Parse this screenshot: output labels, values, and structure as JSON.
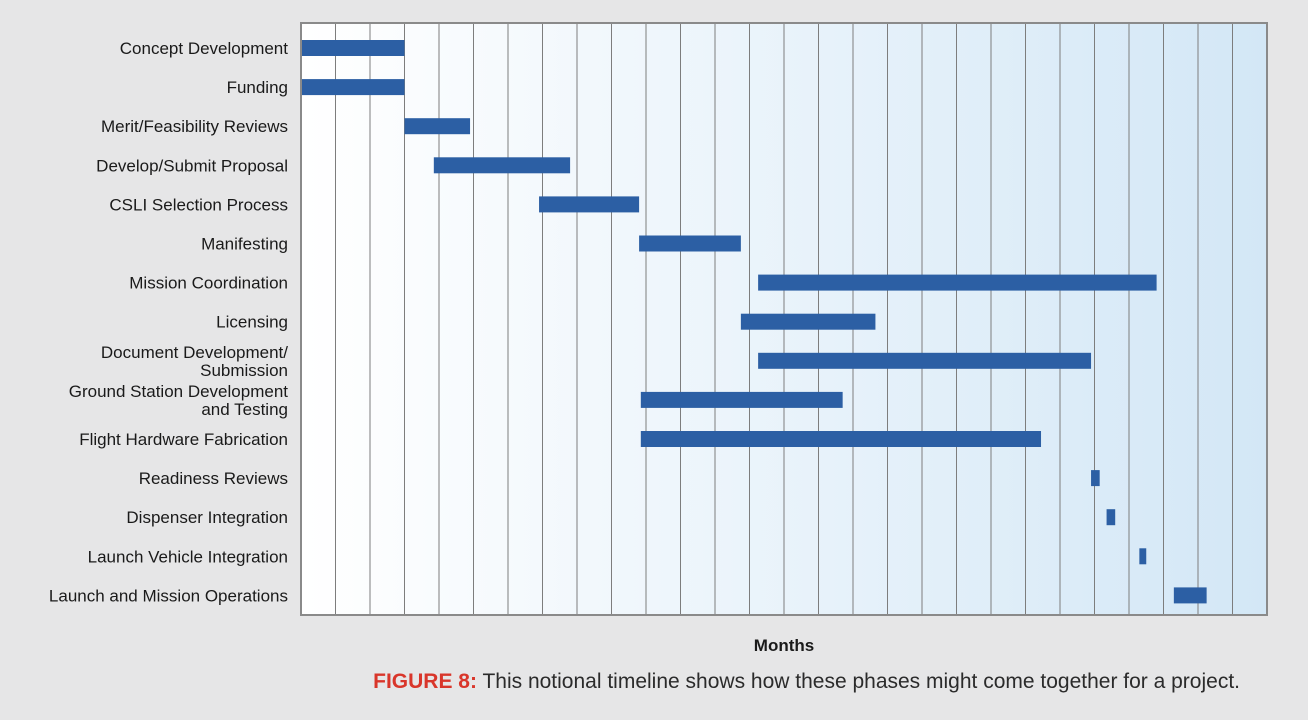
{
  "chart_data": {
    "type": "gantt",
    "xlabel": "Months",
    "months": 28,
    "grid": true,
    "tasks": [
      {
        "label": [
          "Concept Development"
        ],
        "start": 0,
        "end": 3.0
      },
      {
        "label": [
          "Funding"
        ],
        "start": 0,
        "end": 3.0
      },
      {
        "label": [
          "Merit/Feasibility Reviews"
        ],
        "start": 3.0,
        "end": 4.9
      },
      {
        "label": [
          "Develop/Submit Proposal"
        ],
        "start": 3.85,
        "end": 7.8
      },
      {
        "label": [
          "CSLI Selection Process"
        ],
        "start": 6.9,
        "end": 9.8
      },
      {
        "label": [
          "Manifesting"
        ],
        "start": 9.8,
        "end": 12.75
      },
      {
        "label": [
          "Mission Coordination"
        ],
        "start": 13.25,
        "end": 24.8
      },
      {
        "label": [
          "Licensing"
        ],
        "start": 12.75,
        "end": 16.65
      },
      {
        "label": [
          "Document Development/",
          "Submission"
        ],
        "start": 13.25,
        "end": 22.9
      },
      {
        "label": [
          "Ground Station Development",
          "and Testing"
        ],
        "start": 9.85,
        "end": 15.7
      },
      {
        "label": [
          "Flight Hardware Fabrication"
        ],
        "start": 9.85,
        "end": 21.45
      },
      {
        "label": [
          "Readiness Reviews"
        ],
        "start": 22.9,
        "end": 23.15
      },
      {
        "label": [
          "Dispenser Integration"
        ],
        "start": 23.35,
        "end": 23.6
      },
      {
        "label": [
          "Launch Vehicle Integration"
        ],
        "start": 24.3,
        "end": 24.5
      },
      {
        "label": [
          "Launch and Mission Operations"
        ],
        "start": 25.3,
        "end": 26.25
      }
    ],
    "colors": {
      "bar": "#2c5fa4",
      "grid": "#7d7d7d",
      "frame": "#8a8a8a",
      "bg_start": "#ffffff",
      "bg_end": "#d3e7f6"
    }
  },
  "caption": {
    "prefix": "FIGURE 8:",
    "text": " This notional timeline shows how these phases might come together for a project."
  }
}
